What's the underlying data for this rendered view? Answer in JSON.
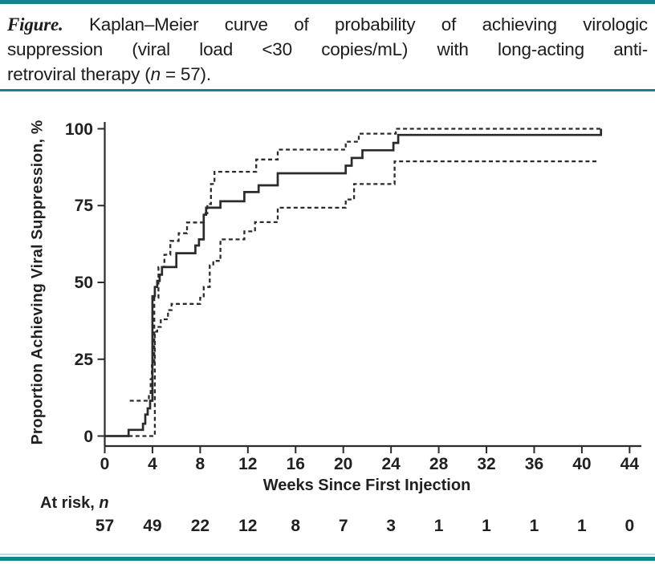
{
  "caption": {
    "line1_label": "Figure.",
    "line1_rest": " Kaplan–Meier curve of probability of achieving virologic",
    "line2": "suppression (viral load <30 copies/mL) with long-acting anti-",
    "line3_prefix": "retroviral therapy (",
    "line3_italic": "n",
    "line3_suffix": " = 57)."
  },
  "chart_data": {
    "type": "line",
    "subtype": "kaplan-meier-step",
    "title": "",
    "xlabel": "Weeks Since First Injection",
    "ylabel": "Proportion Achieving Viral Suppression, %",
    "xlim": [
      0,
      44
    ],
    "ylim": [
      0,
      100
    ],
    "x_ticks": [
      0,
      4,
      8,
      12,
      16,
      20,
      24,
      28,
      32,
      36,
      40,
      44
    ],
    "y_ticks": [
      0,
      25,
      50,
      75,
      100
    ],
    "grid": false,
    "legend": "none",
    "line_color": "#2d2a2b",
    "series": [
      {
        "name": "KM estimate (solid)",
        "style": "solid",
        "step_points": [
          [
            0,
            0
          ],
          [
            2.0,
            2
          ],
          [
            3.2,
            4
          ],
          [
            3.4,
            7
          ],
          [
            3.6,
            9
          ],
          [
            3.8,
            11.5
          ],
          [
            4.0,
            45.5
          ],
          [
            4.2,
            48.5
          ],
          [
            4.4,
            50.5
          ],
          [
            4.6,
            52.5
          ],
          [
            4.8,
            55
          ],
          [
            6.0,
            59.5
          ],
          [
            7.6,
            62
          ],
          [
            7.9,
            64
          ],
          [
            8.3,
            72
          ],
          [
            8.5,
            74.3
          ],
          [
            9.7,
            76.4
          ],
          [
            11.7,
            79.4
          ],
          [
            12.9,
            81.6
          ],
          [
            14.5,
            85.5
          ],
          [
            20.2,
            88
          ],
          [
            20.7,
            90.5
          ],
          [
            21.6,
            93
          ],
          [
            24.2,
            95.4
          ],
          [
            24.6,
            98
          ],
          [
            41.6,
            98
          ],
          [
            41.6,
            100
          ]
        ]
      },
      {
        "name": "Upper 95% CI (dashed)",
        "style": "dashed",
        "step_points": [
          [
            2.1,
            11.5
          ],
          [
            3.7,
            14
          ],
          [
            3.85,
            18.5
          ],
          [
            3.95,
            23
          ],
          [
            4.15,
            45
          ],
          [
            4.5,
            55
          ],
          [
            5.0,
            59
          ],
          [
            5.5,
            63.5
          ],
          [
            6.2,
            66
          ],
          [
            6.9,
            69.5
          ],
          [
            8.3,
            72.5
          ],
          [
            8.6,
            75.5
          ],
          [
            8.9,
            82
          ],
          [
            9.2,
            86
          ],
          [
            12.7,
            90
          ],
          [
            14.5,
            93.2
          ],
          [
            20.2,
            95.8
          ],
          [
            21.3,
            98.4
          ],
          [
            24.4,
            100
          ],
          [
            41.6,
            100
          ]
        ]
      },
      {
        "name": "Lower 95% CI (dashed)",
        "style": "dashed",
        "step_points": [
          [
            2.0,
            0
          ],
          [
            4.1,
            0
          ],
          [
            4.2,
            34
          ],
          [
            4.4,
            35.5
          ],
          [
            4.7,
            38
          ],
          [
            5.3,
            41
          ],
          [
            5.6,
            43
          ],
          [
            8.0,
            45
          ],
          [
            8.3,
            48.5
          ],
          [
            8.8,
            55.5
          ],
          [
            9.1,
            57
          ],
          [
            9.7,
            64
          ],
          [
            11.7,
            66.6
          ],
          [
            12.6,
            69.6
          ],
          [
            14.5,
            74.3
          ],
          [
            20.2,
            77
          ],
          [
            20.9,
            82
          ],
          [
            24.3,
            89.4
          ],
          [
            41.3,
            89.4
          ]
        ]
      }
    ],
    "at_risk": {
      "label_prefix": "At risk, ",
      "label_italic": "n",
      "weeks": [
        0,
        4,
        8,
        12,
        16,
        20,
        24,
        28,
        32,
        36,
        40,
        44
      ],
      "values": [
        57,
        49,
        22,
        12,
        8,
        7,
        3,
        1,
        1,
        1,
        1,
        0
      ]
    }
  }
}
